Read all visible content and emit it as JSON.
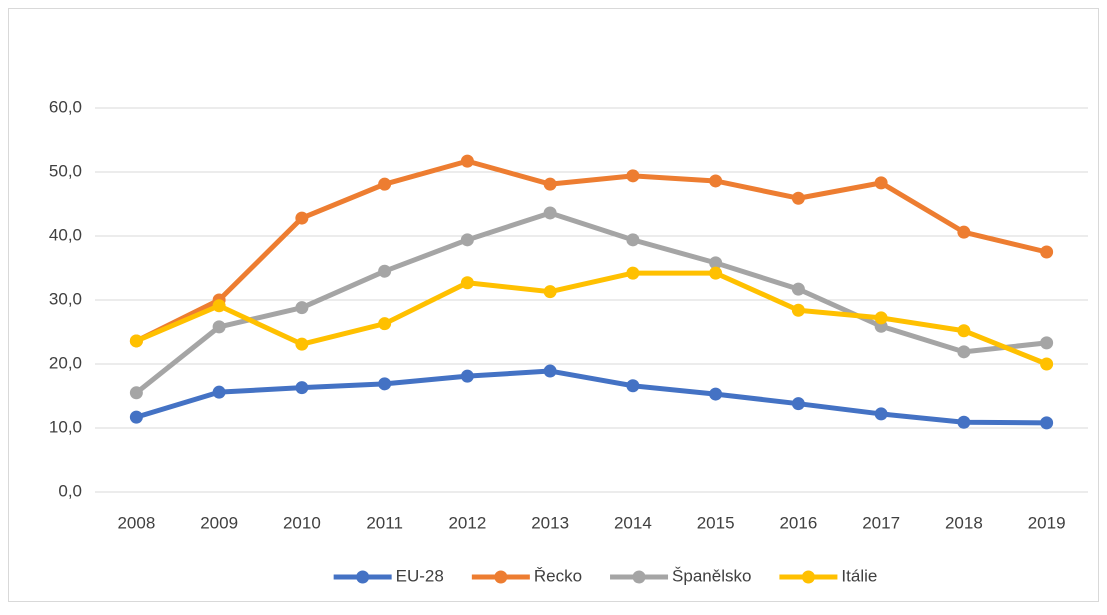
{
  "chart_data": {
    "type": "line",
    "categories": [
      "2008",
      "2009",
      "2010",
      "2011",
      "2012",
      "2013",
      "2014",
      "2015",
      "2016",
      "2017",
      "2018",
      "2019"
    ],
    "series": [
      {
        "name": "EU-28",
        "color": "#4472c4",
        "values": [
          11.7,
          15.6,
          16.3,
          16.9,
          18.1,
          18.9,
          16.6,
          15.3,
          13.8,
          12.2,
          10.9,
          10.8
        ]
      },
      {
        "name": "Řecko",
        "color": "#ed7d31",
        "values": [
          23.6,
          30.0,
          42.8,
          48.1,
          51.7,
          48.1,
          49.4,
          48.6,
          45.9,
          48.3,
          40.6,
          37.5
        ]
      },
      {
        "name": "Španělsko",
        "color": "#a5a5a5",
        "values": [
          15.5,
          25.8,
          28.8,
          34.5,
          39.4,
          43.6,
          39.4,
          35.8,
          31.7,
          25.9,
          21.9,
          23.3
        ]
      },
      {
        "name": "Itálie",
        "color": "#ffc000",
        "values": [
          23.6,
          29.1,
          23.1,
          26.3,
          32.7,
          31.3,
          34.2,
          34.2,
          28.4,
          27.2,
          25.2,
          20.0
        ]
      }
    ],
    "ylim": [
      0,
      60
    ],
    "yticks": [
      {
        "value": 0,
        "label": "0,0"
      },
      {
        "value": 10,
        "label": "10,0"
      },
      {
        "value": 20,
        "label": "20,0"
      },
      {
        "value": 30,
        "label": "30,0"
      },
      {
        "value": 40,
        "label": "40,0"
      },
      {
        "value": 50,
        "label": "50,0"
      },
      {
        "value": 60,
        "label": "60,0"
      }
    ],
    "grid": true,
    "legend": "bottom"
  }
}
